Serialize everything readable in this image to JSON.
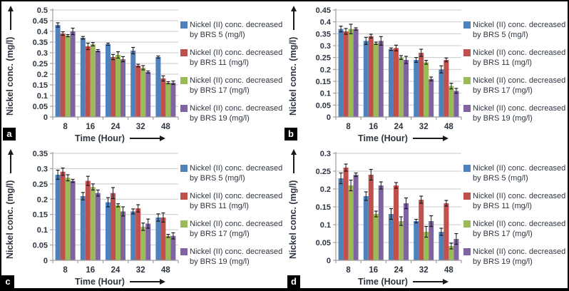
{
  "figure": {
    "x_axis_label": "Time (Hour)",
    "y_axis_label": "Nickel conc. (mg/l)",
    "panel_letters": [
      "a",
      "b",
      "c",
      "d"
    ]
  },
  "colors": {
    "brs5_blue": "#4f81bd",
    "brs11_red": "#c0504d",
    "brs17_green": "#9bbb59",
    "brs19_purple": "#8064a2",
    "text": "#2e3540",
    "gridline": "#c9c9c9",
    "axis": "#9e9e9e",
    "error_bar": "#1a1a1a",
    "panel_label_bg": "#000000",
    "panel_label_fg": "#ffffff",
    "border": "#000000"
  },
  "legend": {
    "entries": [
      {
        "lines": [
          "Nickel (II) conc. decreased",
          "by BRS 5  (mg/l)"
        ],
        "color": "#4f81bd"
      },
      {
        "lines": [
          "Nickel (II) conc. decreased",
          "by BRS 11 (mg/l)"
        ],
        "color": "#c0504d"
      },
      {
        "lines": [
          "Nickel (II) conc. decreased",
          "by BRS 17 (mg/l)"
        ],
        "color": "#9bbb59"
      },
      {
        "lines": [
          "Nickel (II) conc. decreased",
          "by BRS 19 (mg/l)"
        ],
        "color": "#8064a2"
      }
    ]
  },
  "chart_data": [
    {
      "type": "bar",
      "panel": "a",
      "categories": [
        "8",
        "16",
        "24",
        "32",
        "48"
      ],
      "xlabel": "Time (Hour)",
      "ylabel": "Nickel conc. (mg/l)",
      "ylim": [
        0,
        0.5
      ],
      "ytick_step": 0.05,
      "grid": true,
      "legend_position": "right",
      "series": [
        {
          "name": "Nickel (II) conc. decreased by BRS 5 (mg/l)",
          "color": "#4f81bd",
          "values": [
            0.43,
            0.37,
            0.34,
            0.31,
            0.28
          ],
          "errors": [
            0.01,
            0.006,
            0.005,
            0.015,
            0.005
          ]
        },
        {
          "name": "Nickel (II) conc. decreased by BRS 11 (mg/l)",
          "color": "#c0504d",
          "values": [
            0.39,
            0.33,
            0.28,
            0.24,
            0.18
          ],
          "errors": [
            0.008,
            0.015,
            0.012,
            0.006,
            0.012
          ]
        },
        {
          "name": "Nickel (II) conc. decreased by BRS 17 (mg/l)",
          "color": "#9bbb59",
          "values": [
            0.38,
            0.34,
            0.29,
            0.23,
            0.16
          ],
          "errors": [
            0.005,
            0.008,
            0.015,
            0.01,
            0.005
          ]
        },
        {
          "name": "Nickel (II) conc. decreased by BRS 19 (mg/l)",
          "color": "#8064a2",
          "values": [
            0.4,
            0.31,
            0.27,
            0.21,
            0.16
          ],
          "errors": [
            0.015,
            0.005,
            0.012,
            0.005,
            0.008
          ]
        }
      ]
    },
    {
      "type": "bar",
      "panel": "b",
      "categories": [
        "8",
        "16",
        "24",
        "32",
        "48"
      ],
      "xlabel": "Time (Hour)",
      "ylabel": "Nickel conc. (mg/l)",
      "ylim": [
        0,
        0.45
      ],
      "ytick_step": 0.05,
      "grid": true,
      "legend_position": "right",
      "series": [
        {
          "name": "Nickel (II) conc. decreased by BRS 5 (mg/l)",
          "color": "#4f81bd",
          "values": [
            0.37,
            0.32,
            0.285,
            0.24,
            0.2
          ],
          "errors": [
            0.012,
            0.015,
            0.005,
            0.01,
            0.015
          ]
        },
        {
          "name": "Nickel (II) conc. decreased by BRS 11 (mg/l)",
          "color": "#c0504d",
          "values": [
            0.36,
            0.34,
            0.29,
            0.27,
            0.24
          ],
          "errors": [
            0.012,
            0.008,
            0.012,
            0.015,
            0.008
          ]
        },
        {
          "name": "Nickel (II) conc. decreased by BRS 17 (mg/l)",
          "color": "#9bbb59",
          "values": [
            0.37,
            0.31,
            0.25,
            0.23,
            0.13
          ],
          "errors": [
            0.02,
            0.005,
            0.008,
            0.008,
            0.012
          ]
        },
        {
          "name": "Nickel (II) conc. decreased by BRS 19 (mg/l)",
          "color": "#8064a2",
          "values": [
            0.37,
            0.32,
            0.24,
            0.16,
            0.11
          ],
          "errors": [
            0.005,
            0.018,
            0.015,
            0.008,
            0.01
          ]
        }
      ]
    },
    {
      "type": "bar",
      "panel": "c",
      "categories": [
        "8",
        "16",
        "24",
        "32",
        "48"
      ],
      "xlabel": "Time (Hour)",
      "ylabel": "Nickel conc. (mg/l)",
      "ylim": [
        0,
        0.35
      ],
      "ytick_step": 0.05,
      "grid": true,
      "legend_position": "right",
      "series": [
        {
          "name": "Nickel (II) conc. decreased by BRS 5 (mg/l)",
          "color": "#4f81bd",
          "values": [
            0.28,
            0.21,
            0.19,
            0.16,
            0.14
          ],
          "errors": [
            0.015,
            0.012,
            0.015,
            0.008,
            0.012
          ]
        },
        {
          "name": "Nickel (II) conc. decreased by BRS 11 (mg/l)",
          "color": "#c0504d",
          "values": [
            0.29,
            0.26,
            0.22,
            0.17,
            0.14
          ],
          "errors": [
            0.012,
            0.015,
            0.018,
            0.012,
            0.015
          ]
        },
        {
          "name": "Nickel (II) conc. decreased by BRS 17 (mg/l)",
          "color": "#9bbb59",
          "values": [
            0.27,
            0.24,
            0.18,
            0.11,
            0.08
          ],
          "errors": [
            0.01,
            0.01,
            0.005,
            0.012,
            0.005
          ]
        },
        {
          "name": "Nickel (II) conc. decreased by BRS 19 (mg/l)",
          "color": "#8064a2",
          "values": [
            0.26,
            0.22,
            0.16,
            0.12,
            0.08
          ],
          "errors": [
            0.005,
            0.01,
            0.015,
            0.015,
            0.01
          ]
        }
      ]
    },
    {
      "type": "bar",
      "panel": "d",
      "categories": [
        "8",
        "16",
        "24",
        "32",
        "48"
      ],
      "xlabel": "Time (Hour)",
      "ylabel": "Nickel conc. (mg/l)",
      "ylim": [
        0,
        0.3
      ],
      "ytick_step": 0.05,
      "grid": true,
      "legend_position": "right",
      "series": [
        {
          "name": "Nickel (II) conc. decreased by BRS 5 (mg/l)",
          "color": "#4f81bd",
          "values": [
            0.23,
            0.18,
            0.13,
            0.11,
            0.08
          ],
          "errors": [
            0.015,
            0.012,
            0.015,
            0.005,
            0.01
          ]
        },
        {
          "name": "Nickel (II) conc. decreased by BRS 11 (mg/l)",
          "color": "#c0504d",
          "values": [
            0.26,
            0.24,
            0.21,
            0.17,
            0.16
          ],
          "errors": [
            0.01,
            0.015,
            0.008,
            0.01,
            0.008
          ]
        },
        {
          "name": "Nickel (II) conc. decreased by BRS 17 (mg/l)",
          "color": "#9bbb59",
          "values": [
            0.21,
            0.13,
            0.11,
            0.08,
            0.04
          ],
          "errors": [
            0.015,
            0.008,
            0.012,
            0.015,
            0.008
          ]
        },
        {
          "name": "Nickel (II) conc. decreased by BRS 19 (mg/l)",
          "color": "#8064a2",
          "values": [
            0.24,
            0.21,
            0.16,
            0.11,
            0.06
          ],
          "errors": [
            0.005,
            0.01,
            0.015,
            0.015,
            0.015
          ]
        }
      ]
    }
  ]
}
